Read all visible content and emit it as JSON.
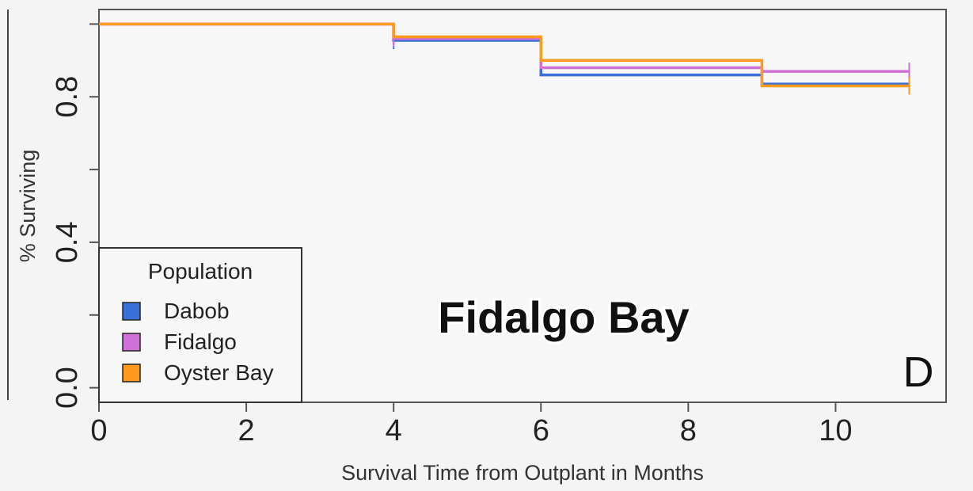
{
  "chart_data": {
    "type": "line",
    "step": true,
    "title": "Fidalgo Bay",
    "panel_label": "D",
    "xlabel": "Survival Time from Outplant in Months",
    "ylabel": "% Surviving",
    "xlim": [
      0,
      11.5
    ],
    "ylim": [
      -0.04,
      1.04
    ],
    "xticks": [
      0,
      2,
      4,
      6,
      8,
      10
    ],
    "xtick_labels": [
      "0",
      "2",
      "4",
      "6",
      "8",
      "10"
    ],
    "yticks": [
      0.0,
      0.2,
      0.4,
      0.6,
      0.8,
      1.0
    ],
    "ytick_labels": [
      "0.0",
      "",
      "0.4",
      "",
      "0.8",
      ""
    ],
    "grid": false,
    "legend": {
      "title": "Population",
      "placement": "bottom-left"
    },
    "series": [
      {
        "name": "Dabob",
        "color": "#3a6fd8",
        "x": [
          0,
          4,
          6,
          9,
          11
        ],
        "y": [
          1.0,
          0.955,
          0.86,
          0.835,
          0.835
        ],
        "censor_x": [
          4,
          11
        ]
      },
      {
        "name": "Fidalgo",
        "color": "#d070d8",
        "x": [
          0,
          4,
          6,
          9,
          11
        ],
        "y": [
          1.0,
          0.96,
          0.88,
          0.87,
          0.87
        ],
        "censor_x": [
          4,
          11
        ]
      },
      {
        "name": "Oyster Bay",
        "color": "#ff9a1f",
        "x": [
          0,
          4,
          6,
          9,
          11
        ],
        "y": [
          1.0,
          0.965,
          0.9,
          0.83,
          0.83
        ],
        "censor_x": [
          11
        ]
      }
    ]
  }
}
